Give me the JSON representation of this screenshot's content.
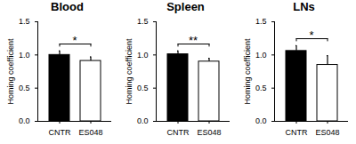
{
  "chart_data": [
    {
      "type": "bar",
      "title": "Blood",
      "y_label": "Homing coefficient",
      "categories": [
        "CNTR",
        "ES048"
      ],
      "values": [
        1.0,
        0.91
      ],
      "errors": [
        0.06,
        0.06
      ],
      "colors": [
        "#000000",
        "#ffffff"
      ],
      "ylim": [
        0,
        1.5
      ],
      "yticks": [
        {
          "value": 0,
          "label": "0.0"
        },
        {
          "value": 0.5,
          "label": "0.5"
        },
        {
          "value": 1,
          "label": "1.0"
        },
        {
          "value": 1.5,
          "label": "1.5"
        }
      ],
      "annotation": "*"
    },
    {
      "type": "bar",
      "title": "Spleen",
      "y_label": "Homing coefficient",
      "categories": [
        "CNTR",
        "ES048"
      ],
      "values": [
        1.01,
        0.9
      ],
      "errors": [
        0.05,
        0.05
      ],
      "colors": [
        "#000000",
        "#ffffff"
      ],
      "ylim": [
        0,
        1.5
      ],
      "yticks": [
        {
          "value": 0,
          "label": "0.0"
        },
        {
          "value": 0.5,
          "label": "0.5"
        },
        {
          "value": 1,
          "label": "1.0"
        },
        {
          "value": 1.5,
          "label": "1.5"
        }
      ],
      "annotation": "**"
    },
    {
      "type": "bar",
      "title": "LNs",
      "y_label": "Homing coefficient",
      "categories": [
        "CNTR",
        "ES048"
      ],
      "values": [
        1.06,
        0.85
      ],
      "errors": [
        0.08,
        0.14
      ],
      "colors": [
        "#000000",
        "#ffffff"
      ],
      "ylim": [
        0,
        1.5
      ],
      "yticks": [
        {
          "value": 0,
          "label": "0.0"
        },
        {
          "value": 0.5,
          "label": "0.5"
        },
        {
          "value": 1,
          "label": "1.0"
        },
        {
          "value": 1.5,
          "label": "1.5"
        }
      ],
      "annotation": "*"
    }
  ]
}
